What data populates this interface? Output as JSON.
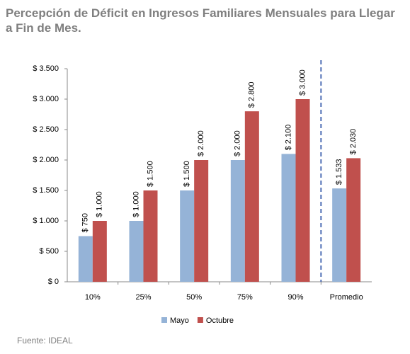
{
  "chart_data": {
    "type": "bar",
    "title": "Percepción de Déficit en Ingresos Familiares Mensuales para Llegar a Fin de Mes.",
    "source": "Fuente: IDEAL",
    "categories": [
      "10%",
      "25%",
      "50%",
      "75%",
      "90%",
      "Promedio"
    ],
    "series": [
      {
        "name": "Mayo",
        "color": "#95b3d7",
        "values": [
          750,
          1000,
          1500,
          2000,
          2100,
          1533
        ],
        "value_labels": [
          "$ 750",
          "$ 1.000",
          "$ 1.500",
          "$ 2.000",
          "$ 2.100",
          "$ 1.533"
        ]
      },
      {
        "name": "Octubre",
        "color": "#c0504d",
        "values": [
          1000,
          1500,
          2000,
          2800,
          3000,
          2030
        ],
        "value_labels": [
          "$ 1.000",
          "$ 1.500",
          "$ 2.000",
          "$ 2.800",
          "$ 3.000",
          "$ 2.030"
        ]
      }
    ],
    "ylim": [
      0,
      3500
    ],
    "yticks": [
      {
        "value": 0,
        "label": "$ 0"
      },
      {
        "value": 500,
        "label": "$ 500"
      },
      {
        "value": 1000,
        "label": "$ 1.000"
      },
      {
        "value": 1500,
        "label": "$ 1.500"
      },
      {
        "value": 2000,
        "label": "$ 2.000"
      },
      {
        "value": 2500,
        "label": "$ 2.500"
      },
      {
        "value": 3000,
        "label": "$ 3.000"
      },
      {
        "value": 3500,
        "label": "$ 3.500"
      }
    ],
    "grid": false,
    "legend": "bottom"
  }
}
